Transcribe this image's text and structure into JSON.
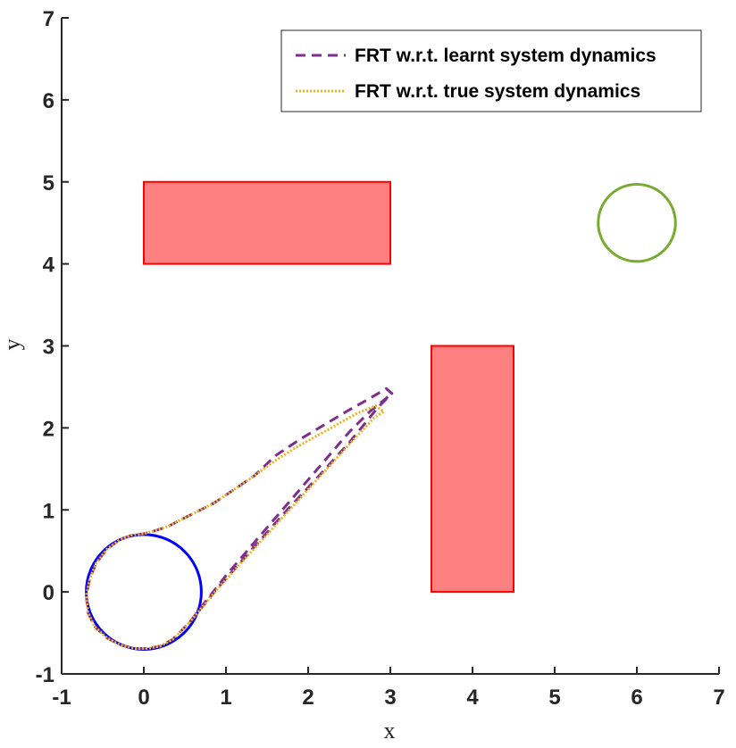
{
  "chart_data": {
    "type": "line",
    "title": "",
    "xlabel": "x",
    "ylabel": "y",
    "xlim": [
      -1,
      7
    ],
    "ylim": [
      -1,
      7
    ],
    "xticks": [
      "-1",
      "0",
      "1",
      "2",
      "3",
      "4",
      "5",
      "6",
      "7"
    ],
    "yticks": [
      "-1",
      "0",
      "1",
      "2",
      "3",
      "4",
      "5",
      "6",
      "7"
    ],
    "grid": false,
    "legend_position": "top-right",
    "obstacles": [
      {
        "shape": "rectangle",
        "x0": 0,
        "y0": 4,
        "x1": 3,
        "y1": 5,
        "fill": "#ff8080",
        "edge": "#ff0000"
      },
      {
        "shape": "rectangle",
        "x0": 3.5,
        "y0": 0,
        "x1": 4.5,
        "y1": 3,
        "fill": "#ff8080",
        "edge": "#ff0000"
      }
    ],
    "goal": {
      "shape": "circle",
      "cx": 6,
      "cy": 4.5,
      "r": 0.47,
      "color": "#77ac30"
    },
    "initial_set": {
      "shape": "arc",
      "cx": 0,
      "cy": 0,
      "r": 0.7,
      "color": "#0000ff"
    },
    "series": [
      {
        "name": "FRT w.r.t. learnt system dynamics",
        "style": "dashed",
        "color": "#7e2f8e",
        "x": [
          0.55,
          0.9,
          1.3,
          1.7,
          2.1,
          2.5,
          2.85,
          3.02,
          2.95,
          2.75,
          2.5,
          2.2,
          1.9,
          1.6,
          1.35,
          1.1,
          0.85,
          0.65,
          0.45,
          0.3,
          0.15,
          0,
          -0.15,
          -0.3,
          -0.45,
          -0.58,
          -0.66,
          -0.7,
          -0.68,
          -0.6,
          -0.45,
          -0.28,
          -0.1,
          0.05,
          0.2,
          0.35,
          0.55,
          0.75,
          1.0,
          1.3,
          1.6,
          1.9,
          2.2,
          2.5,
          2.75,
          2.9,
          3.02
        ],
        "y": [
          -0.38,
          0.05,
          0.5,
          0.95,
          1.38,
          1.82,
          2.25,
          2.42,
          2.48,
          2.36,
          2.22,
          2.04,
          1.86,
          1.66,
          1.42,
          1.25,
          1.08,
          0.98,
          0.88,
          0.8,
          0.75,
          0.71,
          0.69,
          0.63,
          0.52,
          0.35,
          0.15,
          -0.05,
          -0.25,
          -0.42,
          -0.56,
          -0.65,
          -0.69,
          -0.69,
          -0.66,
          -0.58,
          -0.38,
          -0.12,
          0.2,
          0.55,
          0.9,
          1.25,
          1.6,
          1.95,
          2.2,
          2.32,
          2.42
        ]
      },
      {
        "name": "FRT w.r.t. true system dynamics",
        "style": "dotted",
        "color": "#edb120",
        "x": [
          0.55,
          0.9,
          1.3,
          1.7,
          2.1,
          2.5,
          2.8,
          2.92,
          2.82,
          2.6,
          2.35,
          2.1,
          1.85,
          1.6,
          1.35,
          1.1,
          0.85,
          0.65,
          0.45,
          0.3,
          0.15,
          0,
          -0.15,
          -0.3,
          -0.45,
          -0.58,
          -0.66,
          -0.7,
          -0.68,
          -0.6,
          -0.45,
          -0.28,
          -0.1,
          0.05,
          0.2,
          0.35,
          0.55
        ],
        "y": [
          -0.38,
          0.04,
          0.48,
          0.92,
          1.36,
          1.8,
          2.12,
          2.2,
          2.27,
          2.18,
          2.04,
          1.9,
          1.76,
          1.6,
          1.42,
          1.25,
          1.08,
          0.98,
          0.88,
          0.8,
          0.75,
          0.71,
          0.69,
          0.63,
          0.52,
          0.35,
          0.15,
          -0.05,
          -0.25,
          -0.42,
          -0.56,
          -0.65,
          -0.69,
          -0.69,
          -0.66,
          -0.58,
          -0.38
        ]
      }
    ]
  }
}
